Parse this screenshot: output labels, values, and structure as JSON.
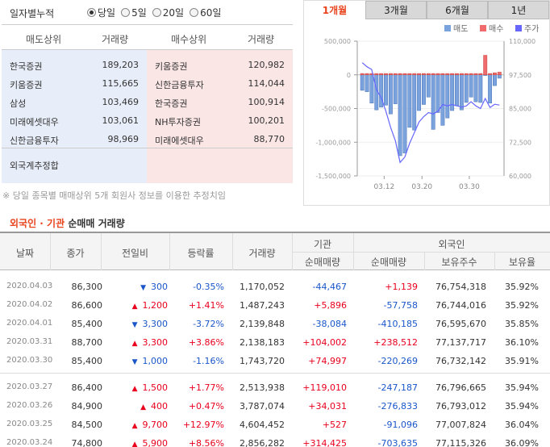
{
  "period": {
    "title": "일자별누적",
    "options": [
      "당일",
      "5일",
      "20일",
      "60일"
    ],
    "selected": "당일"
  },
  "rank_table": {
    "headers": [
      "매도상위",
      "거래량",
      "매수상위",
      "거래량"
    ],
    "sell": [
      {
        "name": "한국증권",
        "volume": "189,203"
      },
      {
        "name": "키움증권",
        "volume": "115,665"
      },
      {
        "name": "삼성",
        "volume": "103,469"
      },
      {
        "name": "미래에셋대우",
        "volume": "103,061"
      },
      {
        "name": "신한금융투자",
        "volume": "98,969"
      }
    ],
    "buy": [
      {
        "name": "키움증권",
        "volume": "120,982"
      },
      {
        "name": "신한금융투자",
        "volume": "114,044"
      },
      {
        "name": "한국증권",
        "volume": "100,914"
      },
      {
        "name": "NH투자증권",
        "volume": "100,201"
      },
      {
        "name": "미래에셋대우",
        "volume": "88,770"
      }
    ],
    "footer_label": "외국계추정합",
    "footnote": "※ 당일 종목별 매매상위 5개 회원사 정보를 이용한 추정치임"
  },
  "chart_tabs": [
    "1개월",
    "3개월",
    "6개월",
    "1년"
  ],
  "active_chart_tab": "1개월",
  "colors": {
    "sell": "#7aa3dd",
    "buy": "#f06b6b",
    "price": "#6666ff",
    "accent": "#e8431c",
    "up": "#e8001c",
    "down": "#1a56c9"
  },
  "chart_data": {
    "type": "bar",
    "legend": [
      "매도",
      "매수",
      "주가"
    ],
    "legend_position": "top-right",
    "y_left": {
      "ticks": [
        "500,000",
        "0",
        "-500,000",
        "-1,000,000",
        "-1,500,000"
      ],
      "range": [
        -1500000,
        500000
      ]
    },
    "y_right": {
      "ticks": [
        "110,000",
        "97,500",
        "85,000",
        "72,500",
        "60,000"
      ],
      "range": [
        60000,
        110000
      ]
    },
    "x_ticks": [
      "03.12",
      "03.20",
      "03.30"
    ],
    "series": [
      {
        "name": "매도",
        "values": [
          -230000,
          -250000,
          -420000,
          -520000,
          -480000,
          -450000,
          -580000,
          -430000,
          -1200000,
          -1160000,
          -780000,
          -820000,
          -530000,
          -440000,
          -330000,
          -810000,
          -560000,
          -750000,
          -640000,
          -530000,
          -460000,
          -520000,
          -410000,
          -330000,
          -400000,
          -410000,
          -10000,
          -420000,
          -160000,
          -50000
        ]
      },
      {
        "name": "매수",
        "values": [
          20000,
          20000,
          20000,
          20000,
          20000,
          20000,
          20000,
          20000,
          20000,
          20000,
          20000,
          20000,
          20000,
          20000,
          20000,
          20000,
          20000,
          20000,
          20000,
          20000,
          20000,
          20000,
          20000,
          20000,
          20000,
          20000,
          290000,
          20000,
          30000,
          40000
        ]
      },
      {
        "name": "주가",
        "values": [
          102000,
          100500,
          99500,
          92000,
          89000,
          84000,
          78000,
          73000,
          65000,
          67000,
          72000,
          76000,
          80000,
          82000,
          83500,
          83000,
          84000,
          86500,
          86000,
          86500,
          86000,
          85500,
          86000,
          87500,
          86000,
          85000,
          88700,
          85400,
          86600,
          86300
        ]
      }
    ]
  },
  "section_title": {
    "part1": "외국인 · 기관",
    "part2": "순매매 거래량"
  },
  "table": {
    "headers": {
      "date": "날짜",
      "close": "종가",
      "change": "전일비",
      "rate": "등락률",
      "volume": "거래량",
      "inst": "기관",
      "inst_net": "순매매량",
      "foreign": "외국인",
      "for_net": "순매매량",
      "for_hold": "보유주수",
      "for_ratio": "보유율"
    },
    "rows": [
      {
        "date": "2020.04.03",
        "close": "86,300",
        "dir": "down",
        "change": "300",
        "rate": "-0.35%",
        "volume": "1,170,052",
        "inst": "-44,467",
        "foreign": "+1,139",
        "hold": "76,754,318",
        "ratio": "35.92%"
      },
      {
        "date": "2020.04.02",
        "close": "86,600",
        "dir": "up",
        "change": "1,200",
        "rate": "+1.41%",
        "volume": "1,487,243",
        "inst": "+5,896",
        "foreign": "-57,758",
        "hold": "76,744,016",
        "ratio": "35.92%"
      },
      {
        "date": "2020.04.01",
        "close": "85,400",
        "dir": "down",
        "change": "3,300",
        "rate": "-3.72%",
        "volume": "2,139,848",
        "inst": "-38,084",
        "foreign": "-410,185",
        "hold": "76,595,670",
        "ratio": "35.85%"
      },
      {
        "date": "2020.03.31",
        "close": "88,700",
        "dir": "up",
        "change": "3,300",
        "rate": "+3.86%",
        "volume": "2,138,183",
        "inst": "+104,002",
        "foreign": "+238,512",
        "hold": "77,137,717",
        "ratio": "36.10%"
      },
      {
        "date": "2020.03.30",
        "close": "85,400",
        "dir": "down",
        "change": "1,000",
        "rate": "-1.16%",
        "volume": "1,743,720",
        "inst": "+74,997",
        "foreign": "-220,269",
        "hold": "76,732,142",
        "ratio": "35.91%"
      },
      {
        "date": "2020.03.27",
        "close": "86,400",
        "dir": "up",
        "change": "1,500",
        "rate": "+1.77%",
        "volume": "2,513,938",
        "inst": "+119,010",
        "foreign": "-247,187",
        "hold": "76,796,665",
        "ratio": "35.94%"
      },
      {
        "date": "2020.03.26",
        "close": "84,900",
        "dir": "up",
        "change": "400",
        "rate": "+0.47%",
        "volume": "3,787,074",
        "inst": "+34,031",
        "foreign": "-276,833",
        "hold": "76,793,012",
        "ratio": "35.94%"
      },
      {
        "date": "2020.03.25",
        "close": "84,500",
        "dir": "up",
        "change": "9,700",
        "rate": "+12.97%",
        "volume": "4,604,452",
        "inst": "+527",
        "foreign": "-91,096",
        "hold": "77,007,824",
        "ratio": "36.04%"
      },
      {
        "date": "2020.03.24",
        "close": "74,800",
        "dir": "up",
        "change": "5,900",
        "rate": "+8.56%",
        "volume": "2,856,282",
        "inst": "+314,425",
        "foreign": "-703,635",
        "hold": "77,115,326",
        "ratio": "36.09%"
      }
    ]
  }
}
